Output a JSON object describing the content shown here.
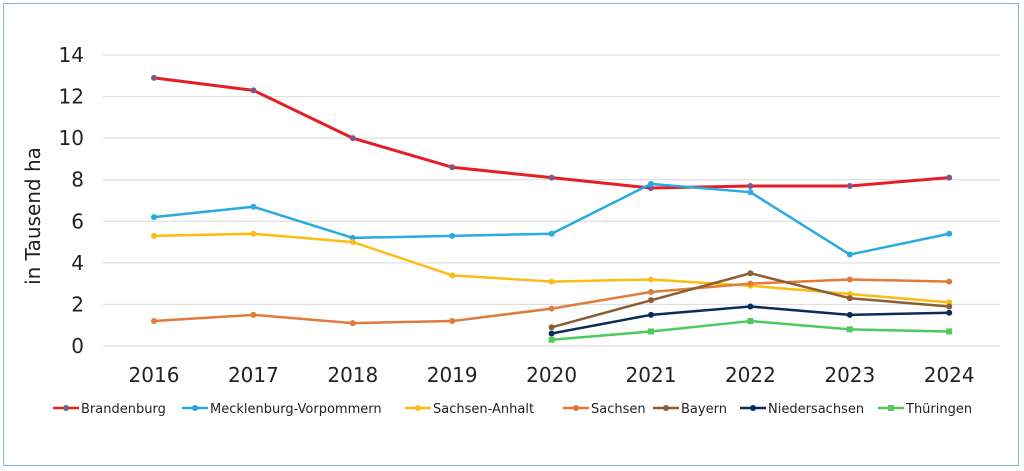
{
  "chart_data": {
    "type": "line",
    "ylabel": "in Tausend ha",
    "xlabel": "",
    "ylim": [
      0,
      14
    ],
    "yticks": [
      0,
      2,
      4,
      6,
      8,
      10,
      12,
      14
    ],
    "grid": "horizontal",
    "legend_position": "bottom",
    "categories": [
      "2016",
      "2017",
      "2018",
      "2019",
      "2020",
      "2021",
      "2022",
      "2023",
      "2024"
    ],
    "series": [
      {
        "name": "Brandenburg",
        "color": "#e31e24",
        "marker_color": "#7a5a8a",
        "values": [
          12.9,
          12.3,
          10.0,
          8.6,
          8.1,
          7.6,
          7.7,
          7.7,
          8.1
        ]
      },
      {
        "name": "Mecklenburg-Vorpommern",
        "color": "#29aae1",
        "marker_color": "#29aae1",
        "values": [
          6.2,
          6.7,
          5.2,
          5.3,
          5.4,
          7.8,
          7.4,
          4.4,
          5.4
        ]
      },
      {
        "name": "Sachsen-Anhalt",
        "color": "#fbbd13",
        "marker_color": "#fbbd13",
        "values": [
          5.3,
          5.4,
          5.0,
          3.4,
          3.1,
          3.2,
          2.9,
          2.5,
          2.1
        ]
      },
      {
        "name": "Sachsen",
        "color": "#e07b39",
        "marker_color": "#e07b39",
        "values": [
          1.2,
          1.5,
          1.1,
          1.2,
          1.8,
          2.6,
          3.0,
          3.2,
          3.1
        ]
      },
      {
        "name": "Bayern",
        "color": "#8b5e34",
        "marker_color": "#8b5e34",
        "values": [
          null,
          null,
          null,
          null,
          0.9,
          2.2,
          3.5,
          2.3,
          1.9
        ]
      },
      {
        "name": "Niedersachsen",
        "color": "#0d2a5c",
        "marker_color": "#0d2a5c",
        "values": [
          null,
          null,
          null,
          null,
          0.6,
          1.5,
          1.9,
          1.5,
          1.6
        ]
      },
      {
        "name": "Thüringen",
        "color": "#4ccb5a",
        "marker_color": "#4ccb5a",
        "values": [
          null,
          null,
          null,
          null,
          0.3,
          0.7,
          1.2,
          0.8,
          0.7
        ]
      }
    ]
  }
}
